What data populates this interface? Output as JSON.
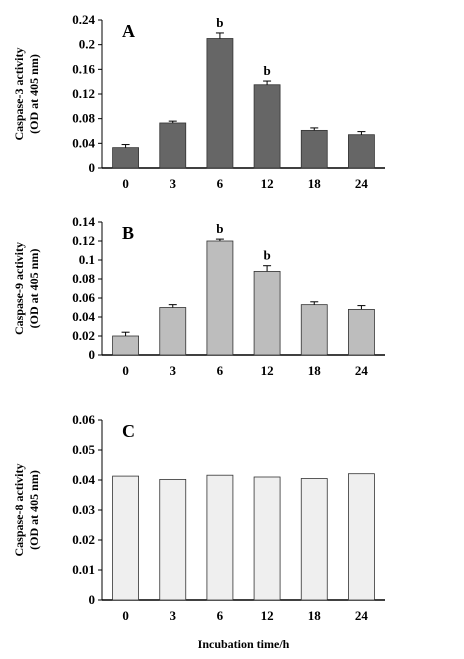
{
  "chart_data": [
    {
      "type": "bar",
      "panel_label": "A",
      "categories": [
        "0",
        "3",
        "6",
        "12",
        "18",
        "24"
      ],
      "values": [
        0.033,
        0.073,
        0.21,
        0.135,
        0.061,
        0.054
      ],
      "errors": [
        0.005,
        0.003,
        0.009,
        0.006,
        0.004,
        0.005
      ],
      "annotations": [
        "",
        "",
        "b",
        "b",
        "",
        ""
      ],
      "ylabel_line1": "Caspase-3 activity",
      "ylabel_line2": "(OD at 405 nm)",
      "yticks": [
        "0",
        "0.04",
        "0.08",
        "0.12",
        "0.16",
        "0.2",
        "0.24"
      ],
      "ylim": [
        0,
        0.24
      ],
      "bar_color": "#666666"
    },
    {
      "type": "bar",
      "panel_label": "B",
      "categories": [
        "0",
        "3",
        "6",
        "12",
        "18",
        "24"
      ],
      "values": [
        0.02,
        0.05,
        0.12,
        0.088,
        0.053,
        0.048
      ],
      "errors": [
        0.004,
        0.003,
        0.002,
        0.006,
        0.003,
        0.004
      ],
      "annotations": [
        "",
        "",
        "b",
        "b",
        "",
        ""
      ],
      "ylabel_line1": "Caspase-9 activity",
      "ylabel_line2": "(OD at 405 nm)",
      "yticks": [
        "0",
        "0.02",
        "0.04",
        "0.06",
        "0.08",
        "0.1",
        "0.12",
        "0.14"
      ],
      "ylim": [
        0,
        0.14
      ],
      "bar_color": "#bdbdbd"
    },
    {
      "type": "bar",
      "panel_label": "C",
      "categories": [
        "0",
        "3",
        "6",
        "12",
        "18",
        "24"
      ],
      "values": [
        0.0413,
        0.0402,
        0.0416,
        0.041,
        0.0405,
        0.0421
      ],
      "errors": [
        0,
        0,
        0,
        0,
        0,
        0
      ],
      "annotations": [
        "",
        "",
        "",
        "",
        "",
        ""
      ],
      "ylabel_line1": "Caspase-8 activity",
      "ylabel_line2": "(OD at 405 nm)",
      "yticks": [
        "0",
        "0.01",
        "0.02",
        "0.03",
        "0.04",
        "0.05",
        "0.06"
      ],
      "ylim": [
        0,
        0.06
      ],
      "bar_color": "#efefef",
      "xlabel": "Incubation time/h"
    }
  ]
}
